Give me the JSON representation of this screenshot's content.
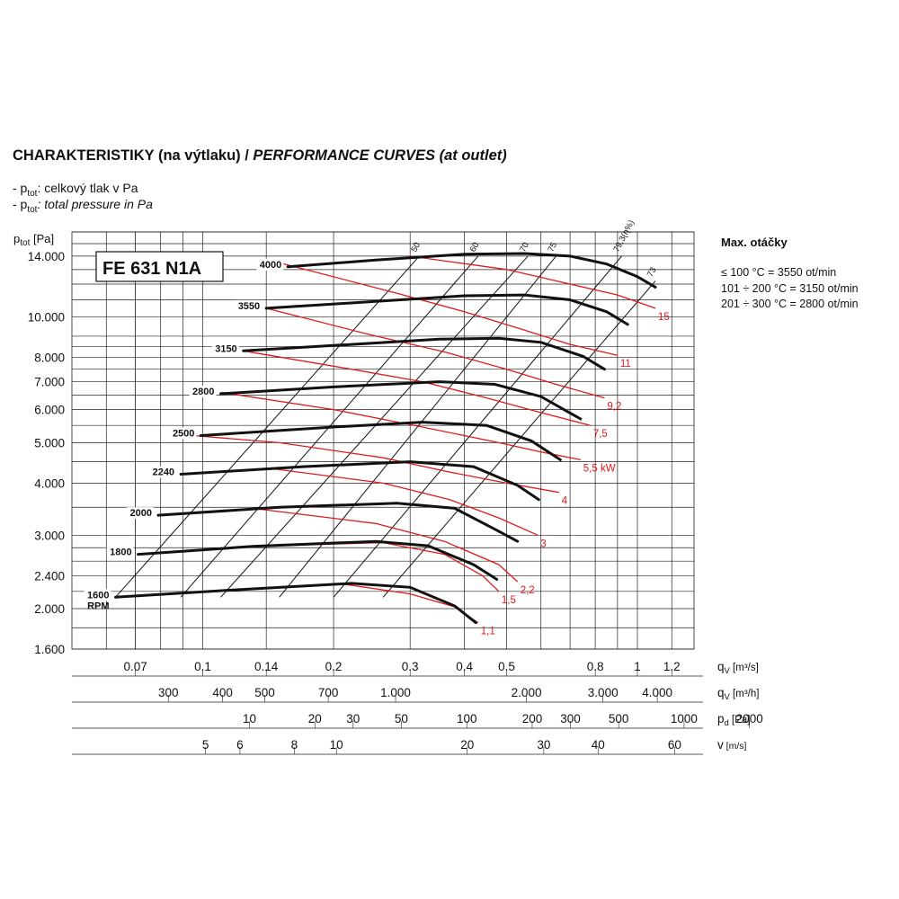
{
  "heading": {
    "main": "CHARAKTERISTIKY (na výtlaku) / ",
    "italic": "PERFORMANCE CURVES (at outlet)"
  },
  "legend": {
    "line1_prefix": "- p",
    "line1_sub": "tot",
    "line1_text": ": celkový tlak v Pa",
    "line2_prefix": "- p",
    "line2_sub": "tot",
    "line2_text": ": total pressure in Pa"
  },
  "max_rpm": {
    "title": "Max. otáčky",
    "items": [
      "≤ 100 °C = 3550 ot/min",
      "101 ÷ 200 °C = 3150 ot/min",
      "201 ÷ 300 °C = 2800 ot/min"
    ]
  },
  "chart_data": {
    "type": "line",
    "title": "FE 631 N1A",
    "y_axis": {
      "label": "p",
      "label_sub": "tot",
      "label_unit": "[Pa]",
      "scale": "log",
      "range": [
        1600,
        16000
      ],
      "ticks": [
        1600,
        2000,
        2400,
        3000,
        4000,
        5000,
        6000,
        7000,
        8000,
        10000,
        14000
      ],
      "tick_labels": [
        "1.600",
        "2.000",
        "2.400",
        "3.000",
        "4.000",
        "5.000",
        "6.000",
        "7.000",
        "8.000",
        "10.000",
        "14.000"
      ]
    },
    "x_axes": [
      {
        "label": "q",
        "sub": "V",
        "unit": "[m³/s]",
        "ticks": [
          0.07,
          0.1,
          0.14,
          0.2,
          0.3,
          0.4,
          0.5,
          0.8,
          1,
          1.2
        ],
        "tick_labels": [
          "0.07",
          "0.1",
          "0.14",
          "0.2",
          "0.3",
          "0.4",
          "0.5",
          "0.8",
          "1",
          "1.2"
        ]
      },
      {
        "label": "q",
        "sub": "V",
        "unit": "[m³/h]",
        "ticks": [
          300,
          400,
          500,
          700,
          1000,
          2000,
          3000,
          4000
        ],
        "tick_labels": [
          "300",
          "400",
          "500",
          "700",
          "1.000",
          "2.000",
          "3.000",
          "4.000"
        ]
      },
      {
        "label": "p",
        "sub": "d",
        "unit": "[Pa]",
        "ticks": [
          10,
          20,
          30,
          50,
          100,
          200,
          300,
          500,
          1000,
          2000
        ],
        "tick_labels": [
          "10",
          "20",
          "30",
          "50",
          "100",
          "200",
          "300",
          "500",
          "1000",
          "2000"
        ]
      },
      {
        "label": "v",
        "sub": "",
        "unit": "[m/s]",
        "ticks": [
          5,
          6,
          8,
          10,
          20,
          30,
          40,
          60
        ],
        "tick_labels": [
          "5",
          "6",
          "8",
          "10",
          "20",
          "30",
          "40",
          "60"
        ]
      }
    ],
    "speed_curves": [
      {
        "name": "4000",
        "points": [
          [
            0.157,
            13200
          ],
          [
            0.25,
            13700
          ],
          [
            0.4,
            14150
          ],
          [
            0.55,
            14200
          ],
          [
            0.7,
            14000
          ],
          [
            0.85,
            13400
          ],
          [
            1.0,
            12500
          ],
          [
            1.1,
            11800
          ]
        ]
      },
      {
        "name": "3550",
        "points": [
          [
            0.14,
            10500
          ],
          [
            0.25,
            10900
          ],
          [
            0.4,
            11250
          ],
          [
            0.55,
            11300
          ],
          [
            0.7,
            11000
          ],
          [
            0.85,
            10300
          ],
          [
            0.95,
            9600
          ]
        ]
      },
      {
        "name": "3150",
        "points": [
          [
            0.124,
            8300
          ],
          [
            0.2,
            8550
          ],
          [
            0.35,
            8850
          ],
          [
            0.48,
            8900
          ],
          [
            0.6,
            8700
          ],
          [
            0.75,
            8050
          ],
          [
            0.84,
            7500
          ]
        ]
      },
      {
        "name": "2800",
        "points": [
          [
            0.11,
            6550
          ],
          [
            0.2,
            6800
          ],
          [
            0.35,
            7000
          ],
          [
            0.47,
            6900
          ],
          [
            0.6,
            6450
          ],
          [
            0.74,
            5700
          ]
        ]
      },
      {
        "name": "2500",
        "points": [
          [
            0.099,
            5200
          ],
          [
            0.2,
            5450
          ],
          [
            0.32,
            5600
          ],
          [
            0.45,
            5500
          ],
          [
            0.57,
            5050
          ],
          [
            0.665,
            4550
          ]
        ]
      },
      {
        "name": "2240",
        "points": [
          [
            0.089,
            4200
          ],
          [
            0.17,
            4380
          ],
          [
            0.3,
            4500
          ],
          [
            0.42,
            4380
          ],
          [
            0.53,
            3950
          ],
          [
            0.593,
            3650
          ]
        ]
      },
      {
        "name": "2000",
        "points": [
          [
            0.079,
            3350
          ],
          [
            0.15,
            3500
          ],
          [
            0.28,
            3580
          ],
          [
            0.38,
            3480
          ],
          [
            0.47,
            3100
          ],
          [
            0.53,
            2900
          ]
        ]
      },
      {
        "name": "1800",
        "points": [
          [
            0.071,
            2700
          ],
          [
            0.13,
            2820
          ],
          [
            0.25,
            2900
          ],
          [
            0.33,
            2830
          ],
          [
            0.42,
            2550
          ],
          [
            0.475,
            2350
          ]
        ]
      },
      {
        "name": "1600",
        "sub_label": "RPM",
        "points": [
          [
            0.063,
            2130
          ],
          [
            0.12,
            2220
          ],
          [
            0.22,
            2300
          ],
          [
            0.3,
            2250
          ],
          [
            0.38,
            2030
          ],
          [
            0.425,
            1850
          ]
        ]
      }
    ],
    "power_curves": [
      {
        "name": "1,1",
        "points": [
          [
            0.205,
            2300
          ],
          [
            0.3,
            2170
          ],
          [
            0.38,
            2020
          ],
          [
            0.43,
            1850
          ]
        ]
      },
      {
        "name": "1,5",
        "points": [
          [
            0.13,
            2820
          ],
          [
            0.26,
            2880
          ],
          [
            0.36,
            2700
          ],
          [
            0.44,
            2400
          ],
          [
            0.48,
            2200
          ]
        ]
      },
      {
        "name": "2,2",
        "points": [
          [
            0.13,
            3480
          ],
          [
            0.25,
            3200
          ],
          [
            0.36,
            2900
          ],
          [
            0.48,
            2550
          ],
          [
            0.53,
            2320
          ]
        ]
      },
      {
        "name": "3",
        "points": [
          [
            0.14,
            4350
          ],
          [
            0.26,
            4000
          ],
          [
            0.37,
            3650
          ],
          [
            0.48,
            3300
          ],
          [
            0.59,
            3000
          ]
        ]
      },
      {
        "name": "4",
        "points": [
          [
            0.095,
            5200
          ],
          [
            0.15,
            5000
          ],
          [
            0.26,
            4600
          ],
          [
            0.37,
            4250
          ],
          [
            0.5,
            4000
          ],
          [
            0.66,
            3800
          ]
        ]
      },
      {
        "name": "5,5 kW",
        "points": [
          [
            0.11,
            6600
          ],
          [
            0.2,
            6000
          ],
          [
            0.32,
            5450
          ],
          [
            0.48,
            5000
          ],
          [
            0.6,
            4750
          ],
          [
            0.74,
            4550
          ]
        ]
      },
      {
        "name": "7,5",
        "points": [
          [
            0.124,
            8300
          ],
          [
            0.22,
            7500
          ],
          [
            0.32,
            7000
          ],
          [
            0.45,
            6400
          ],
          [
            0.6,
            5900
          ],
          [
            0.78,
            5500
          ]
        ]
      },
      {
        "name": "9,2",
        "points": [
          [
            0.14,
            10500
          ],
          [
            0.24,
            9100
          ],
          [
            0.36,
            8250
          ],
          [
            0.5,
            7500
          ],
          [
            0.65,
            6900
          ],
          [
            0.84,
            6400
          ]
        ]
      },
      {
        "name": "11",
        "points": [
          [
            0.15,
            13500
          ],
          [
            0.28,
            11400
          ],
          [
            0.4,
            10300
          ],
          [
            0.55,
            9300
          ],
          [
            0.7,
            8600
          ],
          [
            0.9,
            8100
          ]
        ]
      },
      {
        "name": "15",
        "points": [
          [
            0.3,
            14000
          ],
          [
            0.5,
            13000
          ],
          [
            0.7,
            12000
          ],
          [
            0.9,
            11300
          ],
          [
            1.1,
            10500
          ]
        ]
      }
    ],
    "efficiency_lines": [
      {
        "name": "50",
        "points": [
          [
            0.063,
            2130
          ],
          [
            0.315,
            14000
          ]
        ]
      },
      {
        "name": "60",
        "points": [
          [
            0.089,
            2130
          ],
          [
            0.43,
            14000
          ]
        ]
      },
      {
        "name": "70",
        "points": [
          [
            0.11,
            2130
          ],
          [
            0.56,
            14000
          ]
        ]
      },
      {
        "name": "75",
        "points": [
          [
            0.15,
            2130
          ],
          [
            0.65,
            14000
          ]
        ]
      },
      {
        "name": "79,3(η%)",
        "points": [
          [
            0.2,
            2130
          ],
          [
            0.92,
            14000
          ]
        ]
      },
      {
        "name": "73",
        "points": [
          [
            0.26,
            2130
          ],
          [
            1.1,
            12200
          ]
        ]
      }
    ],
    "grid": true
  }
}
